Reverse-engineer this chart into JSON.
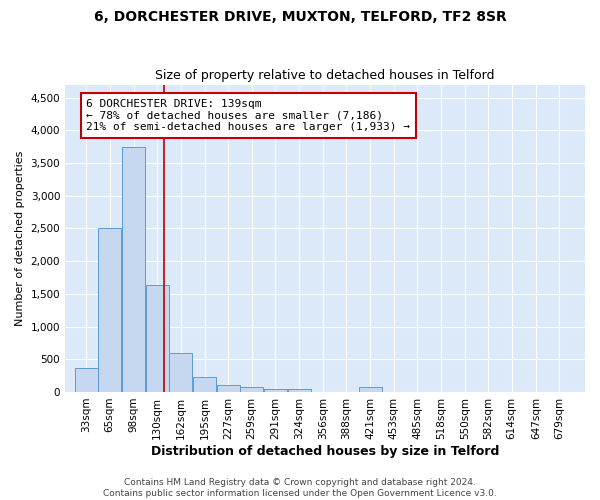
{
  "title_line1": "6, DORCHESTER DRIVE, MUXTON, TELFORD, TF2 8SR",
  "title_line2": "Size of property relative to detached houses in Telford",
  "xlabel": "Distribution of detached houses by size in Telford",
  "ylabel": "Number of detached properties",
  "footer_line1": "Contains HM Land Registry data © Crown copyright and database right 2024.",
  "footer_line2": "Contains public sector information licensed under the Open Government Licence v3.0.",
  "annotation_line1": "6 DORCHESTER DRIVE: 139sqm",
  "annotation_line2": "← 78% of detached houses are smaller (7,186)",
  "annotation_line3": "21% of semi-detached houses are larger (1,933) →",
  "property_size": 139,
  "bar_labels": [
    "33sqm",
    "65sqm",
    "98sqm",
    "130sqm",
    "162sqm",
    "195sqm",
    "227sqm",
    "259sqm",
    "291sqm",
    "324sqm",
    "356sqm",
    "388sqm",
    "421sqm",
    "453sqm",
    "485sqm",
    "518sqm",
    "550sqm",
    "582sqm",
    "614sqm",
    "647sqm",
    "679sqm"
  ],
  "bar_values": [
    370,
    2500,
    3750,
    1640,
    590,
    230,
    110,
    70,
    50,
    50,
    0,
    0,
    70,
    0,
    0,
    0,
    0,
    0,
    0,
    0,
    0
  ],
  "bar_centers": [
    33,
    65,
    98,
    130,
    162,
    195,
    227,
    259,
    291,
    324,
    356,
    388,
    421,
    453,
    485,
    518,
    550,
    582,
    614,
    647,
    679
  ],
  "bin_width": 32,
  "bar_color": "#c5d8ef",
  "bar_edge_color": "#5b9bd5",
  "marker_color": "#c00000",
  "ylim": [
    0,
    4700
  ],
  "yticks": [
    0,
    500,
    1000,
    1500,
    2000,
    2500,
    3000,
    3500,
    4000,
    4500
  ],
  "fig_bg_color": "#ffffff",
  "plot_bg_color": "#dce9f8",
  "grid_color": "#ffffff",
  "title_fontsize": 10,
  "subtitle_fontsize": 9,
  "axis_label_fontsize": 8,
  "tick_fontsize": 7.5,
  "annotation_fontsize": 8,
  "footer_fontsize": 6.5
}
